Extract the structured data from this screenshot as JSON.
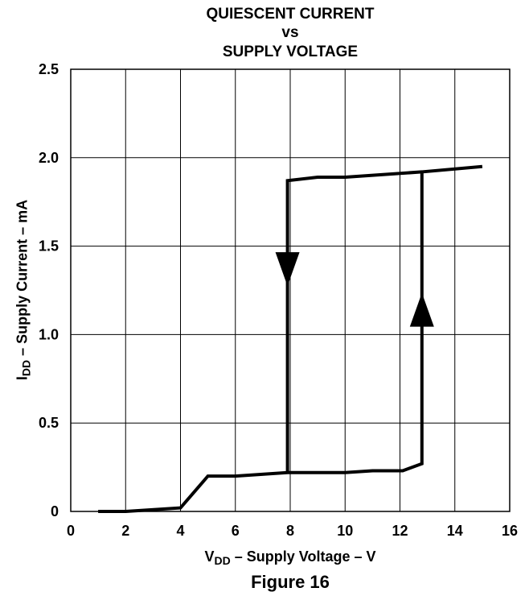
{
  "chart_data": {
    "type": "line",
    "title_lines": [
      "QUIESCENT CURRENT",
      "vs",
      "SUPPLY VOLTAGE"
    ],
    "xlabel": {
      "main": "V",
      "sub": "DD",
      "rest": " – Supply Voltage – V"
    },
    "ylabel": {
      "main": "I",
      "sub": "DD",
      "rest": " – Supply Current – mA"
    },
    "xlim": [
      0,
      16
    ],
    "ylim": [
      0,
      2.5
    ],
    "x_ticks": [
      0,
      2,
      4,
      6,
      8,
      10,
      12,
      14,
      16
    ],
    "y_ticks": [
      0,
      0.5,
      1.0,
      1.5,
      2.0,
      2.5
    ],
    "y_tick_labels": [
      "0",
      "0.5",
      "1.0",
      "1.5",
      "2.0",
      "2.5"
    ],
    "grid": true,
    "series": [
      {
        "points": [
          [
            1,
            0.0
          ],
          [
            2,
            0.0
          ],
          [
            4,
            0.02
          ],
          [
            5,
            0.2
          ],
          [
            6,
            0.2
          ],
          [
            7.9,
            0.22
          ],
          [
            10,
            0.22
          ],
          [
            11,
            0.23
          ],
          [
            12.1,
            0.23
          ],
          [
            12.8,
            0.27
          ],
          [
            12.8,
            1.92
          ],
          [
            15,
            1.95
          ]
        ]
      },
      {
        "points": [
          [
            7.9,
            0.22
          ],
          [
            7.9,
            1.87
          ],
          [
            9,
            1.89
          ],
          [
            10,
            1.89
          ],
          [
            12.8,
            1.92
          ]
        ]
      }
    ],
    "annotations": [
      {
        "type": "arrow-down",
        "x": 7.9,
        "y": 1.37
      },
      {
        "type": "arrow-up",
        "x": 12.8,
        "y": 1.14
      }
    ]
  },
  "caption": "Figure 16"
}
